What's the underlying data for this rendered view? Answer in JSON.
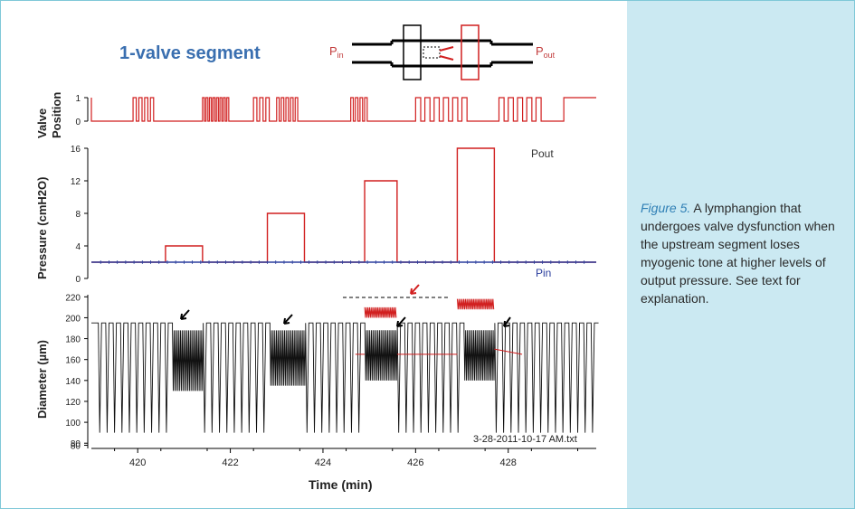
{
  "figure": {
    "segment_title": "1-valve segment",
    "p_in_label": "P",
    "p_in_sub": "in",
    "p_out_label": "P",
    "p_out_sub": "out",
    "valve_axis_label_1": "Valve",
    "valve_axis_label_2": "Position",
    "pressure_axis_label": "Pressure (cmH2O)",
    "diameter_axis_label": "Diameter (µm)",
    "x_axis_label": "Time (min)",
    "pout_legend": "Pout",
    "pin_legend": "Pin",
    "file_label": "3-28-2011-10-17 AM.txt",
    "colors": {
      "pout": "#d11f1f",
      "pin": "#2b3f9e",
      "trace": "#111111",
      "title": "#3a6fb0"
    }
  },
  "caption": {
    "label": "Figure 5.",
    "text": " A lymphangion that undergoes valve dysfunction when the upstream segment loses myogenic tone at higher levels of output pressure. See text for explanation."
  },
  "chart_data": {
    "type": "line",
    "xlabel": "Time (min)",
    "x_ticks": [
      "420",
      "422",
      "424",
      "426",
      "428"
    ],
    "xlim": [
      419,
      429.9
    ],
    "panels": [
      {
        "name": "valve",
        "ylabel": "Valve Position",
        "y_ticks": [
          "0",
          "1"
        ],
        "ylim": [
          0,
          1
        ]
      },
      {
        "name": "pressure",
        "ylabel": "Pressure (cmH2O)",
        "y_ticks": [
          "0",
          "4",
          "8",
          "12",
          "16"
        ],
        "ylim": [
          0,
          16
        ],
        "series": [
          {
            "name": "Pout",
            "x": [
              419,
              420.6,
              420.6,
              421.4,
              421.4,
              422.8,
              422.8,
              423.6,
              423.6,
              424.9,
              424.9,
              425.6,
              425.6,
              426.9,
              426.9,
              427.7,
              427.7,
              429.9
            ],
            "values": [
              2,
              2,
              4,
              4,
              2,
              2,
              8,
              8,
              2,
              2,
              12,
              12,
              2,
              2,
              16,
              16,
              2,
              2
            ]
          },
          {
            "name": "Pin",
            "x": [
              419,
              429.9
            ],
            "values": [
              2,
              2
            ]
          }
        ]
      },
      {
        "name": "diameter",
        "ylabel": "Diameter (µm)",
        "y_ticks": [
          "80",
          "80",
          "100",
          "120",
          "140",
          "160",
          "180",
          "200",
          "220"
        ],
        "ylim": [
          75,
          222
        ]
      }
    ]
  }
}
